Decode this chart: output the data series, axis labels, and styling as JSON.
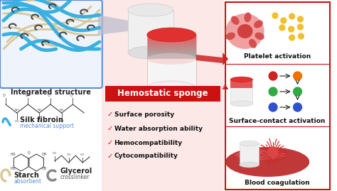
{
  "bg_color": "#ffffff",
  "left_box_border": "#5b8dd9",
  "left_box_fill": "#eef3fc",
  "right_box_border": "#cc1111",
  "center_bg": "#fde8e8",
  "hemostatic_label_bg": "#cc1111",
  "hemostatic_label_text": "Hemostatic sponge",
  "hemostatic_label_color": "#ffffff",
  "check_color": "#cc1111",
  "checklist": [
    "Surface porosity",
    "Water absorption ability",
    "Hemocompatibility",
    "Cytocompatibility"
  ],
  "left_top_label": "Integrated structure",
  "silk_label": "Silk fibroin",
  "silk_sublabel": "mechanical support",
  "starch_label": "Starch",
  "starch_sublabel": "absorbent",
  "glycerol_label": "Glycerol",
  "glycerol_sublabel": "crosslinker",
  "right_labels": [
    "Platelet activation",
    "Surface-contact activation",
    "Blood coagulation"
  ],
  "fiber_blue": "#3ab0e0",
  "fiber_cream": "#d8c89a",
  "fiber_dark": "#444444",
  "sponge_red": "#e03030",
  "sponge_pink": "#f5b0b0",
  "sponge_white": "#f5f5f5",
  "platelet_red": "#d04040",
  "platelet_pink": "#f0a0a0",
  "yellow_dot": "#f0c030",
  "green_dot": "#30aa44",
  "blue_dot": "#3050cc",
  "orange_dot": "#f07000",
  "arrow_red": "#cc2222",
  "vessel_red": "#bb2222",
  "right_divider": "#cc1111"
}
